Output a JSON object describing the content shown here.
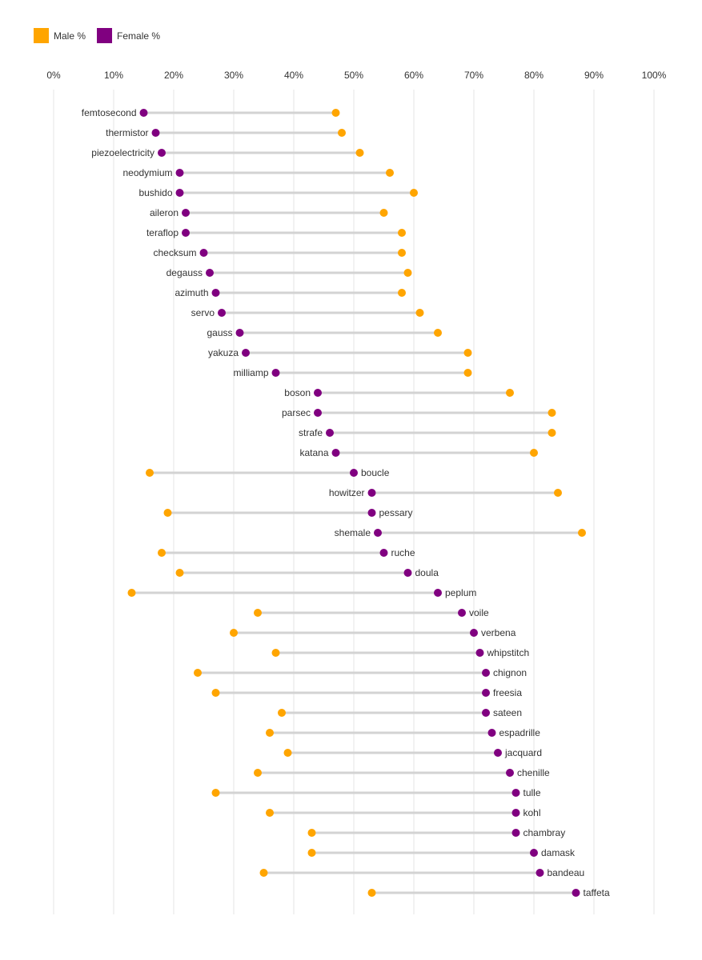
{
  "chart_data": {
    "type": "dumbbell",
    "title": "",
    "xlabel": "",
    "ylabel": "",
    "xlim": [
      0,
      100
    ],
    "x_ticks": [
      "0%",
      "10%",
      "20%",
      "30%",
      "40%",
      "50%",
      "60%",
      "70%",
      "80%",
      "90%",
      "100%"
    ],
    "legend": {
      "placement": "top-left",
      "entries": [
        {
          "name": "Male %",
          "color": "#FFA500"
        },
        {
          "name": "Female %",
          "color": "#800080"
        }
      ]
    },
    "categories": [
      "femtosecond",
      "thermistor",
      "piezoelectricity",
      "neodymium",
      "bushido",
      "aileron",
      "teraflop",
      "checksum",
      "degauss",
      "azimuth",
      "servo",
      "gauss",
      "yakuza",
      "milliamp",
      "boson",
      "parsec",
      "strafe",
      "katana",
      "boucle",
      "howitzer",
      "pessary",
      "shemale",
      "ruche",
      "doula",
      "peplum",
      "voile",
      "verbena",
      "whipstitch",
      "chignon",
      "freesia",
      "sateen",
      "espadrille",
      "jacquard",
      "chenille",
      "tulle",
      "kohl",
      "chambray",
      "damask",
      "bandeau",
      "taffeta"
    ],
    "series": [
      {
        "name": "Male %",
        "color": "#FFA500",
        "values": [
          47,
          48,
          51,
          56,
          60,
          55,
          58,
          58,
          59,
          58,
          61,
          64,
          69,
          69,
          76,
          83,
          83,
          80,
          16,
          84,
          19,
          88,
          18,
          21,
          13,
          34,
          30,
          37,
          24,
          27,
          38,
          36,
          39,
          34,
          27,
          36,
          43,
          43,
          35,
          53
        ]
      },
      {
        "name": "Female %",
        "color": "#800080",
        "values": [
          15,
          17,
          18,
          21,
          21,
          22,
          22,
          25,
          26,
          27,
          28,
          31,
          32,
          37,
          44,
          44,
          46,
          47,
          50,
          53,
          53,
          54,
          55,
          59,
          64,
          68,
          70,
          71,
          72,
          72,
          72,
          73,
          74,
          76,
          77,
          77,
          77,
          80,
          81,
          87
        ]
      }
    ],
    "colors": {
      "grid": "#e6e6e6",
      "connector": "#d3d3d3",
      "text": "#333333"
    }
  }
}
